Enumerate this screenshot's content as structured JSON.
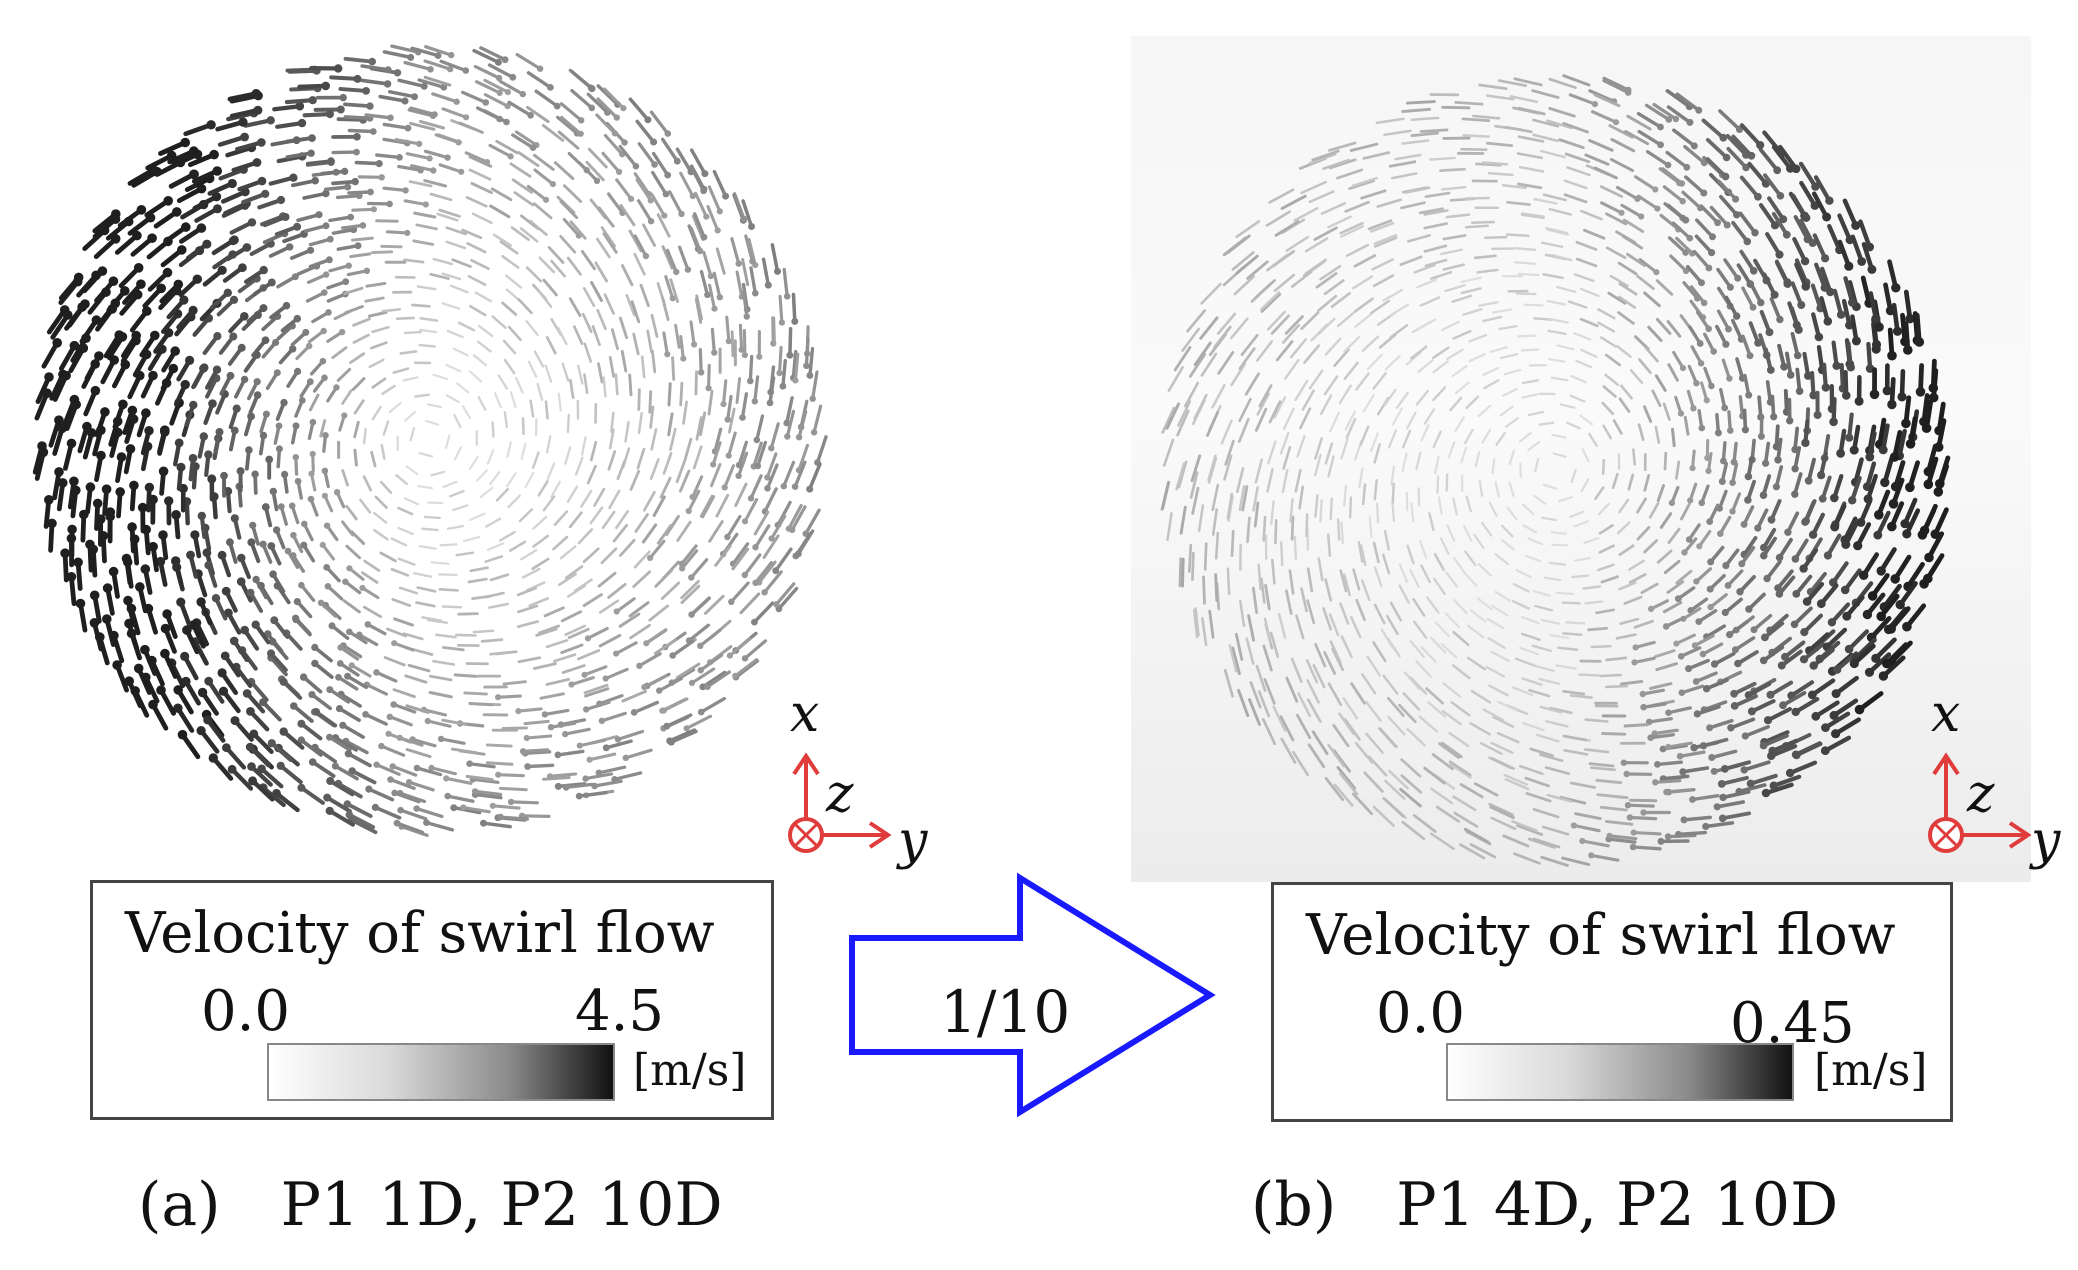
{
  "panels": [
    {
      "caption_letter": "(a)",
      "caption_text": "P1 1D, P2 10D",
      "legend": {
        "title": "Velocity of swirl flow",
        "min": "0.0",
        "max": "4.5",
        "unit": "[m/s]"
      },
      "axes": {
        "x": "x",
        "y": "y",
        "z": "z"
      }
    },
    {
      "caption_letter": "(b)",
      "caption_text": "P1 4D, P2 10D",
      "legend": {
        "title": "Velocity of swirl flow",
        "min": "0.0",
        "max": "0.45",
        "unit": "[m/s]"
      },
      "axes": {
        "x": "x",
        "y": "y",
        "z": "z"
      }
    }
  ],
  "ratio_arrow": {
    "label": "1/10",
    "color": "#1a1aff"
  },
  "colors": {
    "axis_triad": "#e03c3c",
    "vectors": "#222222"
  }
}
